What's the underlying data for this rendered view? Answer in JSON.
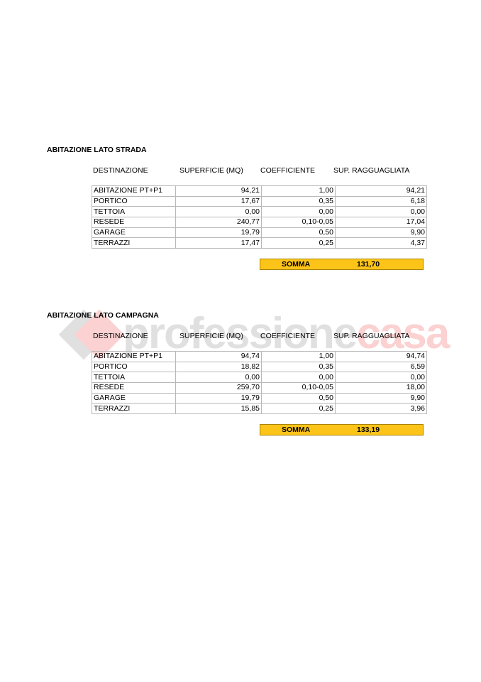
{
  "watermark": {
    "part1": "professione",
    "part2": "casa"
  },
  "headers": [
    "DESTINAZIONE",
    "SUPERFICIE (MQ)",
    "COEFFICIENTE",
    "SUP. RAGGUAGLIATA"
  ],
  "sections": [
    {
      "title": "ABITAZIONE LATO STRADA",
      "rows": [
        [
          "ABITAZIONE PT+P1",
          "94,21",
          "1,00",
          "94,21"
        ],
        [
          "PORTICO",
          "17,67",
          "0,35",
          "6,18"
        ],
        [
          "TETTOIA",
          "0,00",
          "0,00",
          "0,00"
        ],
        [
          "RESEDE",
          "240,77",
          "0,10-0,05",
          "17,04"
        ],
        [
          "GARAGE",
          "19,79",
          "0,50",
          "9,90"
        ],
        [
          "TERRAZZI",
          "17,47",
          "0,25",
          "4,37"
        ]
      ],
      "sum_label": "SOMMA",
      "sum_value": "131,70"
    },
    {
      "title": "ABITAZIONE LATO CAMPAGNA",
      "rows": [
        [
          "ABITAZIONE PT+P1",
          "94,74",
          "1,00",
          "94,74"
        ],
        [
          "PORTICO",
          "18,82",
          "0,35",
          "6,59"
        ],
        [
          "TETTOIA",
          "0,00",
          "0,00",
          "0,00"
        ],
        [
          "RESEDE",
          "259,70",
          "0,10-0,05",
          "18,00"
        ],
        [
          "GARAGE",
          "19,79",
          "0,50",
          "9,90"
        ],
        [
          "TERRAZZI",
          "15,85",
          "0,25",
          "3,96"
        ]
      ],
      "sum_label": "SOMMA",
      "sum_value": "133,19"
    }
  ],
  "colors": {
    "sum_fill": "#fcc419"
  }
}
